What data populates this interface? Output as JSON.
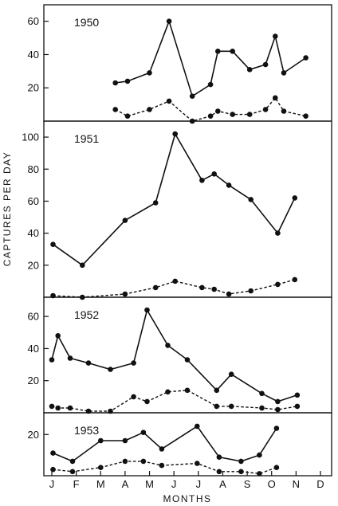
{
  "chart_data": {
    "type": "line",
    "ylabel": "CAPTURES PER DAY",
    "xlabel": "MONTHS",
    "month_labels": [
      "J",
      "F",
      "M",
      "A",
      "M",
      "J",
      "J",
      "A",
      "S",
      "O",
      "N",
      "D"
    ],
    "x_range": [
      0,
      12
    ],
    "grid": false,
    "legend": "none",
    "panels": [
      {
        "year": "1950",
        "ylim": [
          0,
          68
        ],
        "yticks": [
          20,
          40,
          60
        ],
        "series": [
          {
            "style": "solid",
            "points": [
              [
                2.6,
                23
              ],
              [
                3.1,
                24
              ],
              [
                4.0,
                29
              ],
              [
                4.8,
                60
              ],
              [
                5.75,
                15
              ],
              [
                6.5,
                22
              ],
              [
                6.8,
                42
              ],
              [
                7.4,
                42
              ],
              [
                8.1,
                31
              ],
              [
                8.75,
                34
              ],
              [
                9.15,
                51
              ],
              [
                9.5,
                29
              ],
              [
                10.4,
                38
              ]
            ]
          },
          {
            "style": "dashed",
            "points": [
              [
                2.6,
                7
              ],
              [
                3.1,
                3
              ],
              [
                4.0,
                7
              ],
              [
                4.8,
                12
              ],
              [
                5.75,
                0
              ],
              [
                6.5,
                3
              ],
              [
                6.8,
                6
              ],
              [
                7.4,
                4
              ],
              [
                8.1,
                4
              ],
              [
                8.75,
                7
              ],
              [
                9.15,
                14
              ],
              [
                9.5,
                6
              ],
              [
                10.4,
                3
              ]
            ]
          }
        ]
      },
      {
        "year": "1951",
        "ylim": [
          0,
          108
        ],
        "yticks": [
          20,
          40,
          60,
          80,
          100
        ],
        "series": [
          {
            "style": "solid",
            "points": [
              [
                0.05,
                33
              ],
              [
                1.25,
                20
              ],
              [
                3.0,
                48
              ],
              [
                4.25,
                59
              ],
              [
                5.05,
                102
              ],
              [
                6.15,
                73
              ],
              [
                6.65,
                77
              ],
              [
                7.25,
                70
              ],
              [
                8.15,
                61
              ],
              [
                9.25,
                40
              ],
              [
                9.95,
                62
              ]
            ]
          },
          {
            "style": "dashed",
            "points": [
              [
                0.05,
                1
              ],
              [
                1.25,
                0
              ],
              [
                3.0,
                2
              ],
              [
                4.25,
                6
              ],
              [
                5.05,
                10
              ],
              [
                6.15,
                6
              ],
              [
                6.65,
                5
              ],
              [
                7.25,
                2
              ],
              [
                8.15,
                4
              ],
              [
                9.25,
                8
              ],
              [
                9.95,
                11
              ]
            ]
          }
        ]
      },
      {
        "year": "1952",
        "ylim": [
          0,
          70
        ],
        "yticks": [
          20,
          40,
          60
        ],
        "series": [
          {
            "style": "solid",
            "points": [
              [
                0.0,
                33
              ],
              [
                0.25,
                48
              ],
              [
                0.75,
                34
              ],
              [
                1.5,
                31
              ],
              [
                2.4,
                27
              ],
              [
                3.35,
                31
              ],
              [
                3.9,
                64
              ],
              [
                4.75,
                42
              ],
              [
                5.55,
                33
              ],
              [
                6.75,
                14
              ],
              [
                7.35,
                24
              ],
              [
                8.6,
                12
              ],
              [
                9.25,
                7
              ],
              [
                10.05,
                11
              ]
            ]
          },
          {
            "style": "dashed",
            "points": [
              [
                0.0,
                4
              ],
              [
                0.25,
                3
              ],
              [
                0.75,
                3
              ],
              [
                1.5,
                1
              ],
              [
                2.4,
                1
              ],
              [
                3.35,
                10
              ],
              [
                3.9,
                7
              ],
              [
                4.75,
                13
              ],
              [
                5.55,
                14
              ],
              [
                6.75,
                4
              ],
              [
                7.35,
                4
              ],
              [
                8.6,
                3
              ],
              [
                9.25,
                2
              ],
              [
                10.05,
                4
              ]
            ]
          }
        ]
      },
      {
        "year": "1953",
        "ylim": [
          0,
          29
        ],
        "yticks": [
          20
        ],
        "series": [
          {
            "style": "solid",
            "points": [
              [
                0.05,
                11
              ],
              [
                0.85,
                7
              ],
              [
                2.0,
                17
              ],
              [
                3.0,
                17
              ],
              [
                3.75,
                21
              ],
              [
                4.5,
                13
              ],
              [
                5.95,
                24
              ],
              [
                6.85,
                9
              ],
              [
                7.75,
                7
              ],
              [
                8.5,
                10
              ],
              [
                9.2,
                23
              ]
            ]
          },
          {
            "style": "dashed",
            "points": [
              [
                0.05,
                3
              ],
              [
                0.85,
                2
              ],
              [
                2.0,
                4
              ],
              [
                3.0,
                7
              ],
              [
                3.75,
                7
              ],
              [
                4.5,
                5
              ],
              [
                5.95,
                6
              ],
              [
                6.85,
                2
              ],
              [
                7.75,
                2
              ],
              [
                8.5,
                1
              ],
              [
                9.2,
                4
              ]
            ]
          }
        ]
      }
    ]
  }
}
